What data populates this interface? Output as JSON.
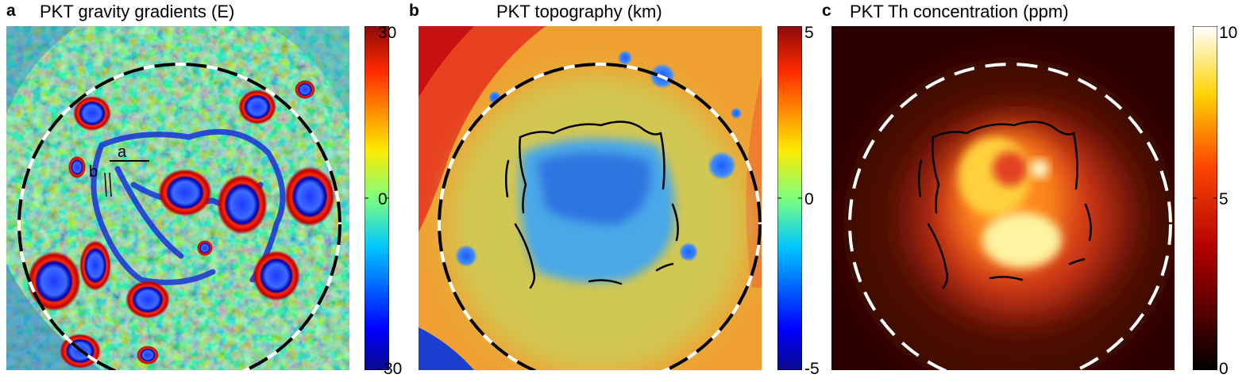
{
  "panels": [
    {
      "letter": "a",
      "title": "PKT gravity gradients (E)",
      "colorbar": {
        "max": "30",
        "mid": "0",
        "min": "-30",
        "colormap": "jet"
      },
      "annotations": [
        {
          "label": "a"
        },
        {
          "label": "b"
        }
      ]
    },
    {
      "letter": "b",
      "title": "PKT topography (km)",
      "colorbar": {
        "max": "5",
        "mid": "0",
        "min": "-5",
        "colormap": "jet"
      }
    },
    {
      "letter": "c",
      "title": "PKT Th concentration (ppm)",
      "colorbar": {
        "max": "10",
        "mid": "5",
        "min": "0",
        "colormap": "hot"
      }
    }
  ]
}
